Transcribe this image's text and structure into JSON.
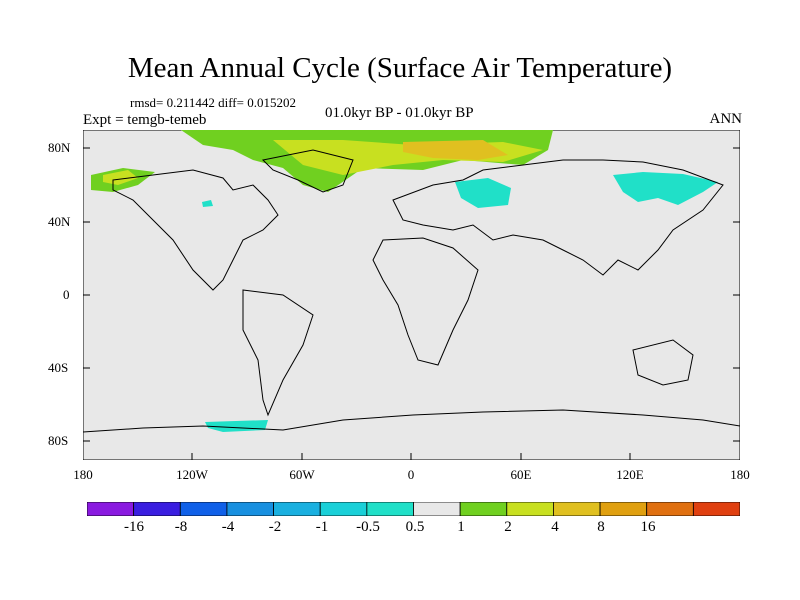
{
  "title": "Mean Annual Cycle (Surface Air Temperature)",
  "stats": "rmsd= 0.211442 diff= 0.015202",
  "expt": "Expt = temgb-temeb",
  "period": "01.0kyr BP - 01.0kyr BP",
  "season": "ANN",
  "lat_labels": [
    "80N",
    "40N",
    "0",
    "40S",
    "80S"
  ],
  "lon_labels": [
    "180",
    "120W",
    "60W",
    "0",
    "60E",
    "120E",
    "180"
  ],
  "colorbar": {
    "labels": [
      "-16",
      "-8",
      "-4",
      "-2",
      "-1",
      "-0.5",
      "0.5",
      "1",
      "2",
      "4",
      "8",
      "16"
    ],
    "colors": [
      "#8a1ae0",
      "#3a1ee0",
      "#1060e8",
      "#1890e0",
      "#1ab0e0",
      "#1ad0d8",
      "#20e0c8",
      "#e8e8e8",
      "#70d020",
      "#c8e020",
      "#e0c020",
      "#e0a010",
      "#e07010",
      "#e04010"
    ]
  }
}
